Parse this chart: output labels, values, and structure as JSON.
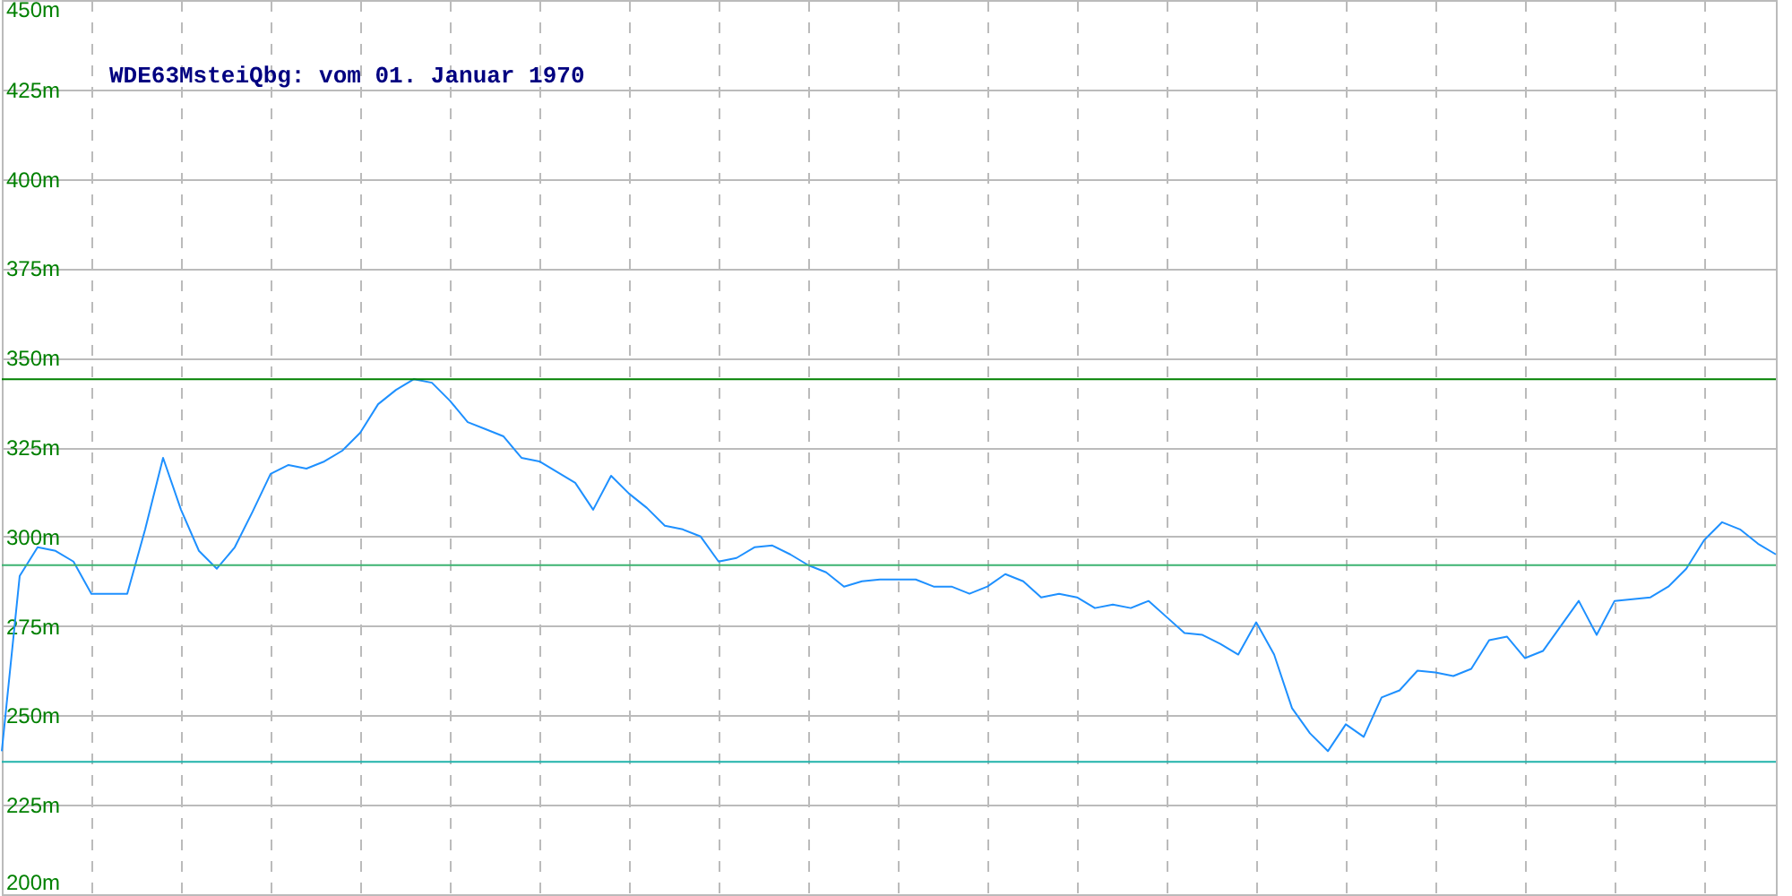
{
  "chart_data": {
    "type": "line",
    "title": "WDE63MsteiQbg: vom 01. Januar 1970",
    "categories": [
      null,
      null,
      null,
      null,
      null,
      null,
      null,
      null,
      null,
      null,
      null,
      null,
      null,
      null,
      null,
      null,
      null,
      null,
      null,
      null,
      null,
      null,
      null,
      null,
      null,
      null,
      null,
      null,
      null,
      null,
      null,
      null,
      null,
      null,
      null,
      null,
      null,
      null,
      null,
      null,
      null,
      null,
      null,
      null,
      null,
      null,
      null,
      null,
      null,
      null,
      null,
      null,
      null,
      null,
      null,
      null,
      null,
      null,
      null,
      null,
      null,
      null,
      null,
      null,
      null,
      null,
      null,
      null,
      null,
      null,
      null,
      null,
      null,
      null,
      null,
      null,
      null,
      null,
      null,
      null,
      null,
      null,
      null,
      null,
      null,
      null,
      null,
      null,
      null,
      null,
      null,
      null,
      null,
      null,
      null,
      null,
      null,
      null,
      null,
      null
    ],
    "series": [
      {
        "color": "#1e90ff",
        "values": [
          240,
          289,
          297,
          296,
          293,
          284,
          284,
          284,
          302,
          322,
          307.5,
          296,
          291,
          297,
          307,
          317.5,
          320,
          319,
          321,
          324,
          329,
          337,
          341,
          344,
          343,
          338,
          332,
          330,
          328,
          322,
          321,
          318,
          315,
          307.5,
          317,
          312,
          308,
          303,
          302,
          300,
          293,
          294,
          297,
          297.5,
          295,
          292,
          290,
          286,
          287.5,
          288,
          288,
          288,
          286,
          286,
          284,
          286,
          289.5,
          287.5,
          283,
          284,
          283,
          280,
          281,
          280,
          282,
          277.5,
          273,
          272.5,
          270,
          267,
          276,
          267,
          252,
          245,
          240,
          247.5,
          244,
          255,
          257,
          262.5,
          262,
          261,
          263,
          271,
          272,
          266,
          268,
          275,
          282,
          272.5,
          282,
          282.5,
          283,
          286,
          291,
          299,
          304,
          302,
          298,
          295
        ]
      }
    ],
    "ylim": [
      200,
      450
    ],
    "yticks": [
      {
        "value": 200,
        "label": "200m"
      },
      {
        "value": 225,
        "label": "225m"
      },
      {
        "value": 250,
        "label": "250m"
      },
      {
        "value": 275,
        "label": "275m"
      },
      {
        "value": 300,
        "label": "300m"
      },
      {
        "value": 325,
        "label": "325m"
      },
      {
        "value": 350,
        "label": "350m"
      },
      {
        "value": 375,
        "label": "375m"
      },
      {
        "value": 400,
        "label": "400m"
      },
      {
        "value": 425,
        "label": "425m"
      },
      {
        "value": 450,
        "label": "450m"
      }
    ],
    "ref_lines": [
      {
        "axis": "y",
        "value": 344,
        "color": "#008000"
      },
      {
        "axis": "y",
        "value": 292,
        "color": "#3cb371"
      },
      {
        "axis": "y",
        "value": 237,
        "color": "#20b2aa"
      }
    ],
    "grid": true,
    "tick_labels": "y",
    "marker": "none",
    "line_style": "solid"
  }
}
